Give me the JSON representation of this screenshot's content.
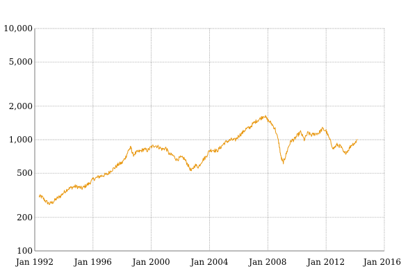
{
  "chart_data": {
    "type": "line",
    "title": "",
    "xlabel": "",
    "ylabel": "",
    "y_scale": "log",
    "xlim": [
      1992.0,
      2016.0
    ],
    "ylim": [
      100,
      10000
    ],
    "x_ticks": [
      {
        "value": 1992,
        "label": "Jan 1992"
      },
      {
        "value": 1996,
        "label": "Jan 1996"
      },
      {
        "value": 2000,
        "label": "Jan 2000"
      },
      {
        "value": 2004,
        "label": "Jan 2004"
      },
      {
        "value": 2008,
        "label": "Jan 2008"
      },
      {
        "value": 2012,
        "label": "Jan 2012"
      },
      {
        "value": 2016,
        "label": "Jan 2016"
      }
    ],
    "y_ticks": [
      {
        "value": 100,
        "label": "100"
      },
      {
        "value": 200,
        "label": "200"
      },
      {
        "value": 500,
        "label": "500"
      },
      {
        "value": 1000,
        "label": "1,000"
      },
      {
        "value": 2000,
        "label": "2,000"
      },
      {
        "value": 5000,
        "label": "5,000"
      },
      {
        "value": 10000,
        "label": "10,000"
      }
    ],
    "grid": true,
    "legend": "none",
    "line_color": "#e8960c",
    "series": [
      {
        "x": [
          1992.3,
          1992.5,
          1992.75,
          1993.0,
          1993.25,
          1993.5,
          1993.75,
          1994.0,
          1994.25,
          1994.5,
          1994.75,
          1995.0,
          1995.25,
          1995.5,
          1995.75,
          1996.0,
          1996.25,
          1996.5,
          1996.75,
          1997.0,
          1997.25,
          1997.5,
          1997.75,
          1998.0,
          1998.25,
          1998.45,
          1998.6,
          1998.75,
          1999.0,
          1999.25,
          1999.5,
          1999.75,
          2000.0,
          2000.25,
          2000.5,
          2000.75,
          2001.0,
          2001.25,
          2001.5,
          2001.75,
          2002.0,
          2002.25,
          2002.5,
          2002.75,
          2003.0,
          2003.25,
          2003.5,
          2003.75,
          2004.0,
          2004.25,
          2004.5,
          2004.75,
          2005.0,
          2005.25,
          2005.5,
          2005.75,
          2006.0,
          2006.25,
          2006.5,
          2006.75,
          2007.0,
          2007.25,
          2007.5,
          2007.75,
          2008.0,
          2008.25,
          2008.5,
          2008.75,
          2008.9,
          2009.05,
          2009.2,
          2009.4,
          2009.6,
          2009.8,
          2010.0,
          2010.25,
          2010.5,
          2010.75,
          2011.0,
          2011.25,
          2011.5,
          2011.75,
          2012.0,
          2012.25,
          2012.5,
          2012.75,
          2013.0,
          2013.25,
          2013.5,
          2013.75,
          2014.0,
          2014.15
        ],
        "values": [
          310,
          305,
          280,
          265,
          275,
          295,
          310,
          335,
          360,
          370,
          380,
          375,
          365,
          385,
          405,
          440,
          455,
          470,
          480,
          490,
          530,
          560,
          600,
          620,
          700,
          810,
          850,
          730,
          770,
          790,
          820,
          800,
          860,
          890,
          860,
          820,
          840,
          740,
          720,
          660,
          690,
          680,
          600,
          520,
          590,
          570,
          650,
          700,
          800,
          810,
          790,
          850,
          930,
          970,
          1000,
          990,
          1080,
          1150,
          1250,
          1280,
          1400,
          1480,
          1550,
          1650,
          1500,
          1400,
          1250,
          950,
          700,
          620,
          700,
          850,
          980,
          1000,
          1080,
          1170,
          1000,
          1150,
          1100,
          1130,
          1150,
          1250,
          1200,
          1000,
          830,
          900,
          870,
          750,
          800,
          900,
          940,
          1010
        ]
      }
    ]
  }
}
